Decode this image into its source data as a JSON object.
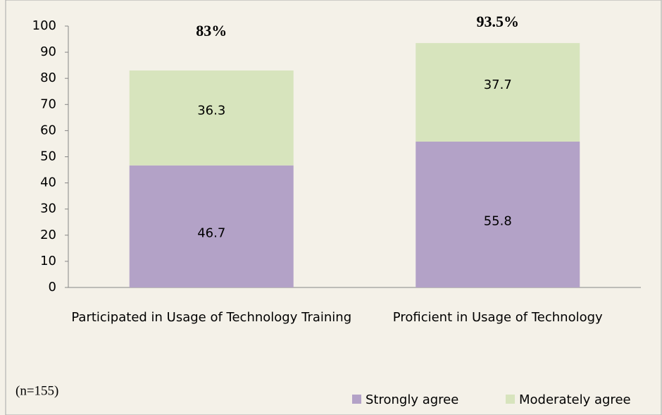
{
  "chart_data": {
    "type": "stacked_bar",
    "categories": [
      "Participated in Usage of Technology Training",
      "Proficient in Usage of Technology"
    ],
    "series": [
      {
        "name": "Strongly agree",
        "color": "#b3a2c7",
        "values": [
          46.7,
          55.8
        ]
      },
      {
        "name": "Moderately agree",
        "color": "#d7e4bd",
        "values": [
          36.3,
          37.7
        ]
      }
    ],
    "totals": {
      "values": [
        83,
        93.5
      ],
      "value_labels": [
        "83%",
        "93.5%"
      ],
      "color": "#f07c2a"
    },
    "note": "(n=155)",
    "ylim": [
      0,
      100
    ],
    "yticks": [
      0,
      10,
      20,
      30,
      40,
      50,
      60,
      70,
      80,
      90,
      100
    ],
    "legend": "bottom-right"
  }
}
